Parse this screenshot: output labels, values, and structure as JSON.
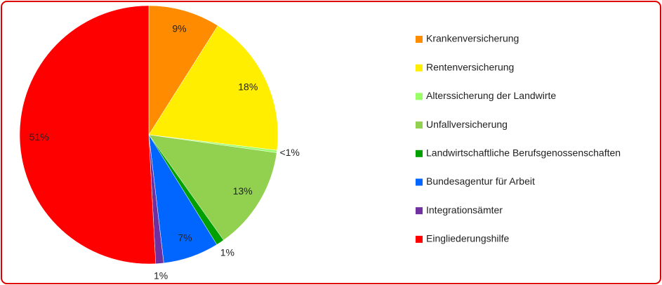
{
  "chart_data": {
    "type": "pie",
    "categories": [
      "Krankenversicherung",
      "Rentenversicherung",
      "Alterssicherung der Landwirte",
      "Unfallversicherung",
      "Landwirtschaftliche Berufsgenossenschaften",
      "Bundesagentur für Arbeit",
      "Integrationsämter",
      "Eingliederungshilfe"
    ],
    "values": [
      9,
      18,
      0.3,
      13,
      1,
      7,
      1,
      51
    ],
    "value_labels": [
      "9%",
      "18%",
      "<1%",
      "13%",
      "1%",
      "7%",
      "1%",
      "51%"
    ],
    "colors": [
      "#ff8c00",
      "#ffee00",
      "#99ff66",
      "#92d050",
      "#00a000",
      "#0066ff",
      "#7030a0",
      "#ff0000"
    ],
    "legend": "right"
  }
}
